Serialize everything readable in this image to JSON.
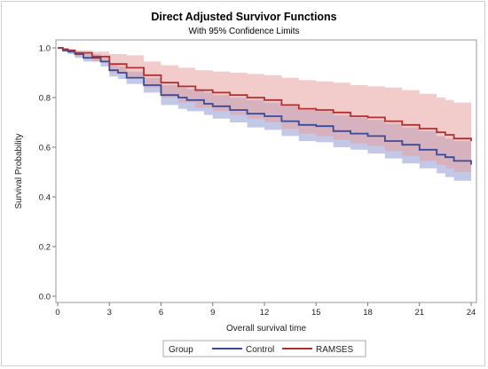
{
  "chart_data": {
    "type": "line",
    "step": true,
    "title": "Direct Adjusted Survivor Functions",
    "subtitle": "With 95% Confidence Limits",
    "xlabel": "Overall survival time",
    "ylabel": "Survival Probability",
    "xlim": [
      0,
      24
    ],
    "ylim": [
      0,
      1
    ],
    "xticks": [
      0,
      3,
      6,
      9,
      12,
      15,
      18,
      21,
      24
    ],
    "yticks": [
      0.0,
      0.2,
      0.4,
      0.6,
      0.8,
      1.0
    ],
    "ytick_labels": [
      "0.0",
      "0.2",
      "0.4",
      "0.6",
      "0.8",
      "1.0"
    ],
    "grid": false,
    "legend": {
      "title": "Group",
      "position": "bottom"
    },
    "series": [
      {
        "name": "Control",
        "color": "#3a4a9a",
        "band_color": "#8f9ad0",
        "x": [
          0,
          0.3,
          0.6,
          1,
          1.5,
          2.5,
          3,
          3.5,
          4,
          5,
          5.5,
          6,
          7,
          7.5,
          8.5,
          9,
          10,
          11,
          12,
          13,
          14,
          15,
          16,
          17,
          18,
          19,
          20,
          21,
          22,
          22.5,
          23,
          24
        ],
        "y": [
          1.0,
          0.99,
          0.985,
          0.975,
          0.96,
          0.945,
          0.91,
          0.9,
          0.88,
          0.85,
          0.85,
          0.81,
          0.8,
          0.79,
          0.775,
          0.765,
          0.75,
          0.735,
          0.725,
          0.705,
          0.69,
          0.685,
          0.665,
          0.655,
          0.645,
          0.625,
          0.61,
          0.59,
          0.57,
          0.56,
          0.545,
          0.53
        ],
        "lower": [
          1.0,
          0.985,
          0.975,
          0.96,
          0.945,
          0.925,
          0.885,
          0.875,
          0.855,
          0.82,
          0.82,
          0.77,
          0.755,
          0.745,
          0.73,
          0.715,
          0.7,
          0.68,
          0.67,
          0.645,
          0.625,
          0.62,
          0.6,
          0.59,
          0.575,
          0.555,
          0.535,
          0.515,
          0.495,
          0.48,
          0.465,
          0.445
        ],
        "upper": [
          1.0,
          0.995,
          0.99,
          0.985,
          0.975,
          0.96,
          0.935,
          0.925,
          0.905,
          0.88,
          0.88,
          0.85,
          0.84,
          0.835,
          0.82,
          0.81,
          0.8,
          0.79,
          0.78,
          0.765,
          0.75,
          0.745,
          0.73,
          0.72,
          0.71,
          0.695,
          0.68,
          0.665,
          0.645,
          0.635,
          0.625,
          0.615
        ]
      },
      {
        "name": "RAMSES",
        "color": "#b03030",
        "band_color": "#e8a0a0",
        "x": [
          0,
          0.3,
          0.6,
          1,
          2,
          3,
          4,
          5,
          6,
          7,
          8,
          9,
          10,
          11,
          12,
          13,
          14,
          15,
          16,
          17,
          18,
          19,
          20,
          21,
          22,
          22.5,
          23,
          24
        ],
        "y": [
          1.0,
          0.995,
          0.99,
          0.98,
          0.965,
          0.935,
          0.92,
          0.89,
          0.86,
          0.845,
          0.83,
          0.82,
          0.81,
          0.8,
          0.79,
          0.77,
          0.755,
          0.75,
          0.74,
          0.725,
          0.72,
          0.705,
          0.69,
          0.675,
          0.66,
          0.65,
          0.635,
          0.625
        ],
        "lower": [
          1.0,
          0.99,
          0.98,
          0.965,
          0.945,
          0.9,
          0.88,
          0.84,
          0.8,
          0.78,
          0.76,
          0.745,
          0.73,
          0.715,
          0.7,
          0.675,
          0.655,
          0.645,
          0.63,
          0.615,
          0.605,
          0.585,
          0.565,
          0.545,
          0.53,
          0.515,
          0.5,
          0.49
        ],
        "upper": [
          1.0,
          0.998,
          0.995,
          0.99,
          0.985,
          0.975,
          0.97,
          0.945,
          0.93,
          0.92,
          0.91,
          0.905,
          0.9,
          0.895,
          0.89,
          0.88,
          0.87,
          0.865,
          0.86,
          0.85,
          0.845,
          0.84,
          0.83,
          0.815,
          0.8,
          0.79,
          0.78,
          0.775
        ]
      }
    ]
  }
}
